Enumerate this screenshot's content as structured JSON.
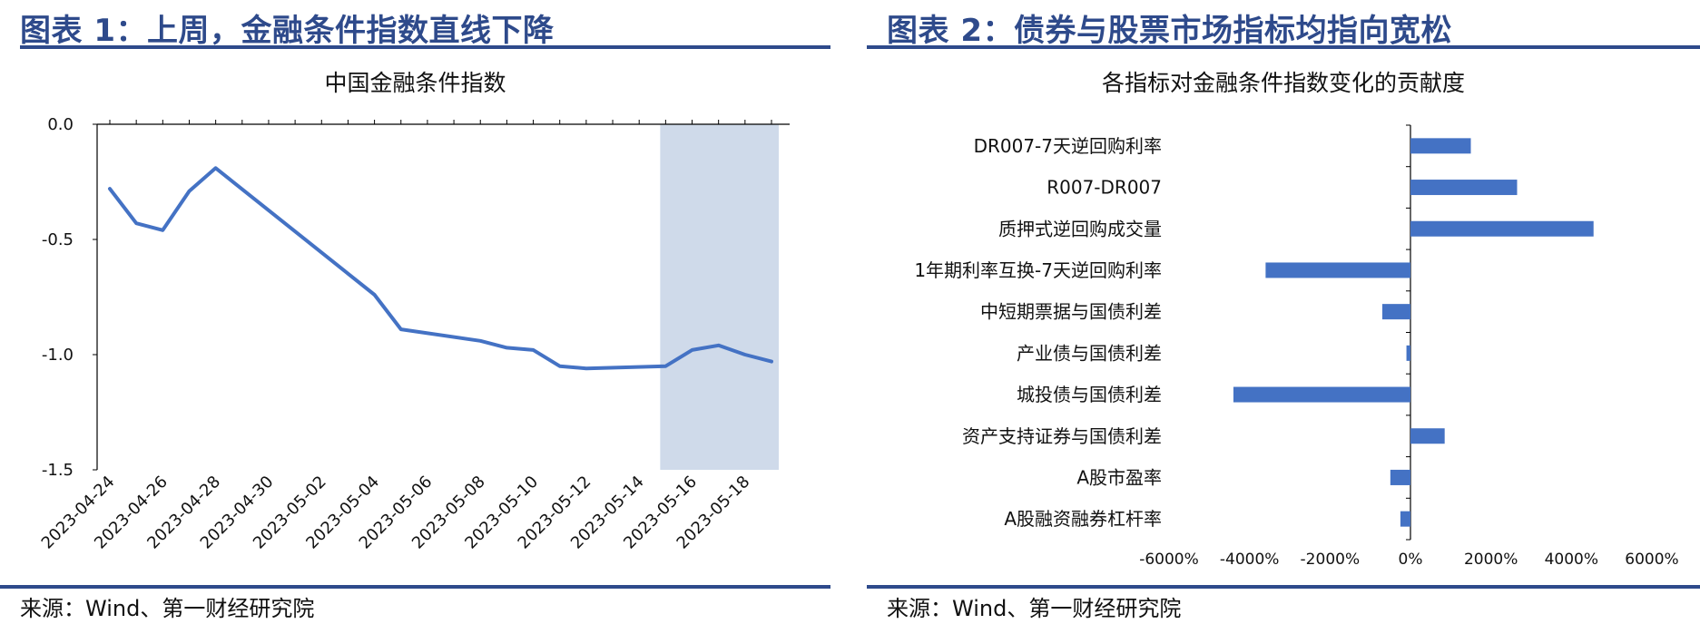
{
  "left": {
    "figure_title": "图表 1：上周，金融条件指数直线下降",
    "source": "来源：Wind、第一财经研究院"
  },
  "right": {
    "figure_title": "图表 2：债券与股票市场指标均指向宽松",
    "source": "来源：Wind、第一财经研究院"
  },
  "colors": {
    "accent": "#2E4A8B",
    "series": "#4472C4",
    "shade": "#CFDAEA"
  },
  "chart_data": [
    {
      "type": "line",
      "title": "中国金融条件指数",
      "x": [
        "2023-04-24",
        "2023-04-25",
        "2023-04-26",
        "2023-04-27",
        "2023-04-28",
        "2023-05-04",
        "2023-05-05",
        "2023-05-08",
        "2023-05-09",
        "2023-05-10",
        "2023-05-11",
        "2023-05-12",
        "2023-05-15",
        "2023-05-16",
        "2023-05-17",
        "2023-05-18",
        "2023-05-19"
      ],
      "y": [
        -0.28,
        -0.43,
        -0.46,
        -0.29,
        -0.19,
        -0.74,
        -0.89,
        -0.94,
        -0.97,
        -0.98,
        -1.05,
        -1.06,
        -1.05,
        -0.98,
        -0.96,
        -1.0,
        -1.03
      ],
      "x_tick_labels": [
        "2023-04-24",
        "2023-04-26",
        "2023-04-28",
        "2023-04-30",
        "2023-05-02",
        "2023-05-04",
        "2023-05-06",
        "2023-05-08",
        "2023-05-10",
        "2023-05-12",
        "2023-05-14",
        "2023-05-16",
        "2023-05-18"
      ],
      "y_tick_labels": [
        "0.0",
        "-0.5",
        "-1.0",
        "-1.5"
      ],
      "ylim": [
        -1.5,
        0.0
      ],
      "xlim": [
        "2023-04-24",
        "2023-05-19"
      ],
      "shaded_range": [
        "2023-05-15",
        "2023-05-19"
      ],
      "grid": false
    },
    {
      "type": "bar",
      "orientation": "horizontal",
      "title": "各指标对金融条件指数变化的贡献度",
      "categories": [
        "DR007-7天逆回购利率",
        "R007-DR007",
        "质押式逆回购成交量",
        "1年期利率互换-7天逆回购利率",
        "中短期票据与国债利差",
        "产业债与国债利差",
        "城投债与国债利差",
        "资产支持证券与国债利差",
        "A股市盈率",
        "A股融资融券杠杆率"
      ],
      "values": [
        1500,
        2650,
        4550,
        -3600,
        -700,
        -100,
        -4400,
        850,
        -500,
        -250
      ],
      "unit": "%",
      "x_tick_labels": [
        "-6000%",
        "-4000%",
        "-2000%",
        "0%",
        "2000%",
        "4000%",
        "6000%"
      ],
      "xlim": [
        -6000,
        6000
      ],
      "grid": false
    }
  ]
}
